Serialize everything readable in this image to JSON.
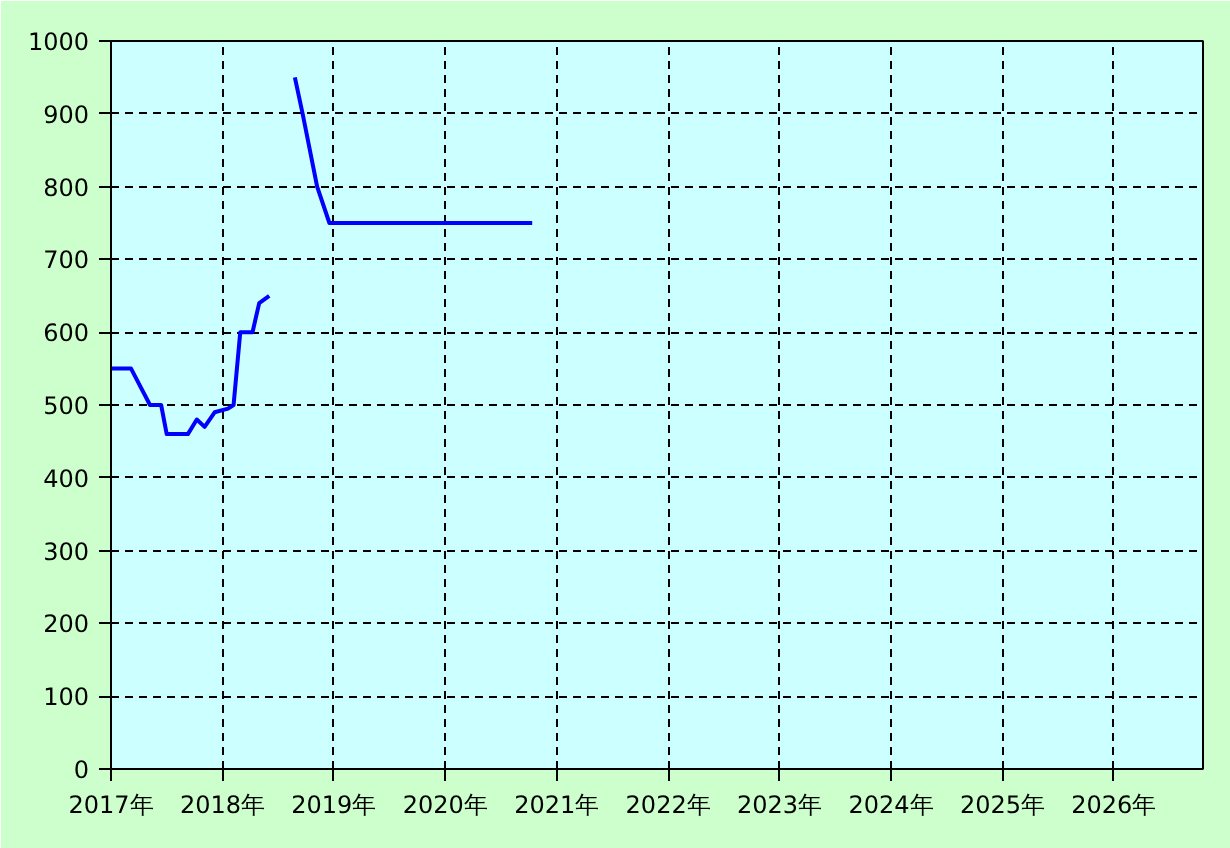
{
  "chart_data": {
    "type": "line",
    "x": [
      2017.0,
      2017.18,
      2017.35,
      2017.45,
      2017.5,
      2017.69,
      2017.77,
      2017.84,
      2017.93,
      2018.05,
      2018.1,
      2018.16,
      2018.27,
      2018.33,
      2018.42,
      2018.55,
      2018.65,
      2018.72,
      2018.85,
      2018.96,
      2020.78
    ],
    "series": [
      {
        "color": "#0000ff",
        "values": [
          550,
          550,
          500,
          500,
          460,
          460,
          480,
          470,
          490,
          495,
          500,
          600,
          600,
          640,
          650,
          null,
          950,
          900,
          800,
          750,
          750
        ]
      }
    ],
    "xlim": [
      2017,
      2026.8
    ],
    "xticks": [
      {
        "value": 2017,
        "label": "2017年"
      },
      {
        "value": 2018,
        "label": "2018年"
      },
      {
        "value": 2019,
        "label": "2019年"
      },
      {
        "value": 2020,
        "label": "2020年"
      },
      {
        "value": 2021,
        "label": "2021年"
      },
      {
        "value": 2022,
        "label": "2022年"
      },
      {
        "value": 2023,
        "label": "2023年"
      },
      {
        "value": 2024,
        "label": "2024年"
      },
      {
        "value": 2025,
        "label": "2025年"
      },
      {
        "value": 2026,
        "label": "2026年"
      }
    ],
    "ylim": [
      0,
      1000
    ],
    "yticks": [
      0,
      100,
      200,
      300,
      400,
      500,
      600,
      700,
      800,
      900,
      1000
    ],
    "grid": true,
    "line_style": "solid"
  }
}
